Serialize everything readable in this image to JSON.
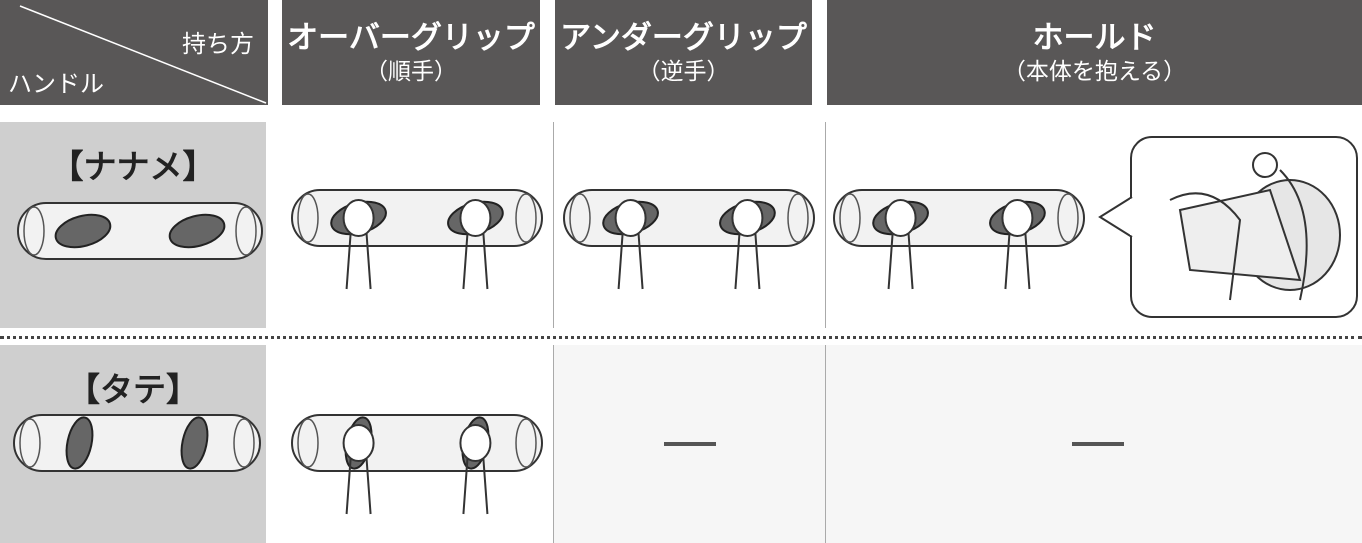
{
  "header": {
    "corner": {
      "top": "持ち方",
      "bottom": "ハンドル"
    },
    "columns": [
      {
        "title": "オーバーグリップ",
        "subtitle": "（順手）"
      },
      {
        "title": "アンダーグリップ",
        "subtitle": "（逆手）"
      },
      {
        "title": "ホールド",
        "subtitle": "（本体を抱える）"
      }
    ]
  },
  "rows": [
    {
      "label": "【ナナメ】"
    },
    {
      "label": "【タテ】"
    }
  ]
}
